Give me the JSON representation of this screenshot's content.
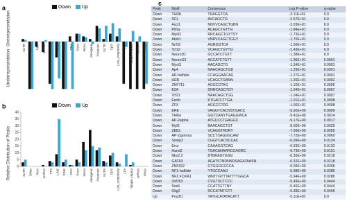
{
  "chart_data": [
    {
      "type": "bar",
      "panel": "a",
      "ylabel_top": "Overrepresentation",
      "ylabel_bottom": "Underrepresentation",
      "categories": [
        "3UTR",
        "Other",
        "RNA",
        "ncRNA",
        "TTS",
        "LINE",
        "SINE",
        "DNA",
        "Exon",
        "Intron",
        "Intergenic",
        "Promoter",
        "5UTR",
        "CpG",
        "Low_complexity",
        "LTR",
        "Simple_repeat",
        "snRNA",
        "rRNA"
      ],
      "series": [
        {
          "name": "Down",
          "color": "#111111",
          "values": [
            0.5,
            -9,
            -1,
            -2,
            -8,
            -3,
            -9,
            1,
            1.5,
            1,
            0.5,
            3,
            0.5,
            1.5,
            1,
            -8,
            -9,
            -9,
            -9
          ]
        },
        {
          "name": "Up",
          "color": "#3aa6d8",
          "values": [
            0.3,
            -9,
            0,
            0.3,
            -9,
            -7,
            -9,
            -9,
            1.5,
            0.8,
            -0.5,
            2.5,
            3,
            3.5,
            2.5,
            -1,
            2,
            1,
            -8
          ]
        }
      ],
      "ylim": [
        -10,
        5
      ],
      "legend": "top"
    },
    {
      "type": "bar",
      "panel": "b",
      "ylabel": "Relative Distribution of Peaks",
      "categories": [
        "3UTR",
        "Other",
        "RNA",
        "ncRNA",
        "TTS",
        "LINE",
        "SINE",
        "DNA",
        "Exon",
        "Intron",
        "Intergenic",
        "Promoter",
        "5UTR",
        "CpG",
        "Low_complexity",
        "LTR",
        "Simple_repeat",
        "snRNA",
        "rRNA"
      ],
      "series": [
        {
          "name": "Down",
          "color": "#111111",
          "values": [
            3,
            0,
            0,
            1,
            4,
            9,
            3,
            1,
            5,
            18,
            27,
            12,
            4,
            8,
            3,
            0,
            1,
            0,
            0
          ]
        },
        {
          "name": "Up",
          "color": "#3aa6d8",
          "values": [
            5,
            0,
            0,
            0,
            3,
            35,
            5,
            1,
            3,
            12,
            15,
            14,
            3,
            10,
            2,
            9,
            3,
            0,
            0
          ]
        }
      ],
      "ylim": [
        0,
        40
      ],
      "yticks": [
        0,
        5,
        10,
        15,
        20,
        25,
        30,
        35,
        40
      ],
      "legend": "top"
    }
  ],
  "table": {
    "panel": "c",
    "columns": [
      "Peak",
      "Motif",
      "Consensus",
      "Log P-value",
      "q-value"
    ],
    "rows": [
      [
        "Down",
        "THRb",
        "TRAGGTCA",
        "-3.11E+01",
        "0.0"
      ],
      [
        "Down",
        "SCL",
        "AVCAGCTG",
        "-2.57E+01",
        "0.0"
      ],
      [
        "Down",
        "Ascl1",
        "NNVVCAGCTGBN",
        "-2.03E+01",
        "0.0"
      ],
      [
        "Down",
        "Ptf1a",
        "ACAGCTGTTN",
        "-1.84E+01",
        "0.0"
      ],
      [
        "Down",
        "MyoD",
        "RRCAGCTGYTSY",
        "-1.73E+01",
        "0.0"
      ],
      [
        "Down",
        "Atoh1",
        "VNRVCAGCTGGY",
        "-1.70E+01",
        "0.0"
      ],
      [
        "Down",
        "Nr2f2",
        "AGRGGTCA",
        "-1.56E+01",
        "0.0"
      ],
      [
        "Down",
        "Tcf12",
        "VCAGCTGYTG",
        "-1.43E+01",
        "0.0"
      ],
      [
        "Down",
        "NeuroD1",
        "GCCATCTGTT",
        "-1.38E+01",
        "0.0"
      ],
      [
        "Down",
        "NeuroG2",
        "ACCATCTGTT",
        "-1.36E+01",
        "0.0001"
      ],
      [
        "Down",
        "MyoG",
        "AACAGCTG",
        "-1.34E+01",
        "0.0001"
      ],
      [
        "Down",
        "Ap4",
        "NAHCAGCTGD",
        "-1.29E+01",
        "0.0001"
      ],
      [
        "Down",
        "AR-halfsite",
        "CCAGGAACAG",
        "-1.27E+01",
        "0.0001"
      ],
      [
        "Down",
        "HEB",
        "VCAGCTGBNN",
        "-1.20E+01",
        "0.0002"
      ],
      [
        "Down",
        "ZNF711",
        "AGGCCTAG",
        "-1.10E+01",
        "0.0005"
      ],
      [
        "Down",
        "E2A",
        "DNRCAGCTGY",
        "-1.04E+01",
        "0.0007"
      ],
      [
        "Down",
        "Tcf21",
        "NAACAGCTGG",
        "-1.04E+01",
        "0.0007"
      ],
      [
        "Down",
        "Esrrb",
        "KTGACCTTGA",
        "-1.01E+01",
        "0.0008"
      ],
      [
        "Down",
        "ZFX",
        "AGGCCTRG",
        "-1.00E+01",
        "0.0008"
      ],
      [
        "Down",
        "ERE",
        "VAGGTCACNSTGACC",
        "-9.92E+00",
        "0.0009"
      ],
      [
        "Down",
        "THRa",
        "GGTCANYTGAGGWCA",
        "-9.41E+00",
        "0.0014"
      ],
      [
        "Down",
        "AP-2alpha",
        "ATGCCCTGAGGC",
        "-9.17E+00",
        "0.0017"
      ],
      [
        "Down",
        "Myf5",
        "BAACAGCTGT",
        "-8.60E+00",
        "0.0029"
      ],
      [
        "Down",
        "ZEB1",
        "VCAGGTRDRY",
        "-7.96E+00",
        "0.0055"
      ],
      [
        "Down",
        "AP-2gamma",
        "SCCTSAGGSCAW",
        "-7.72E+00",
        "0.0069"
      ],
      [
        "Down",
        "Srebp2",
        "CGGTCACSCCAC",
        "-6.99E+00",
        "0.0134"
      ],
      [
        "Down",
        "Erra",
        "CAAAGGTCAG",
        "-6.93E+00",
        "0.0132"
      ],
      [
        "Down",
        "Hand2",
        "TGACANARRCCAGRC",
        "-6.73E+00",
        "0.0151"
      ],
      [
        "Down",
        "Nkx2.2",
        "BTBRAGTGSN",
        "-6.36E+00",
        "0.0218"
      ],
      [
        "Down",
        "GATA3",
        "AGATSTNDNNDSAGATAASN",
        "-6.32E+00",
        "0.0218"
      ],
      [
        "Down",
        "ZNF692",
        "GTGGGCCCCA",
        "-6.09E+00",
        "0.0266"
      ],
      [
        "Down",
        "NF1-halfsite",
        "YTGCCAAG",
        "-5.98E+00",
        "0.0286"
      ],
      [
        "Down",
        "NF1:FOXA1",
        "WNTTGTTTATTTTGGCA",
        "-5.94E+00",
        "0.0286"
      ],
      [
        "Down",
        "Znf263",
        "CVGTSCTCCC",
        "-5.49E+00",
        "0.0444"
      ],
      [
        "Down",
        "Sox6",
        "CCATTGTTNY",
        "-5.46E+00",
        "0.0444"
      ],
      [
        "Down",
        "Olig2",
        "RCCATMTGTT",
        "-5.38E+00",
        "0.0466"
      ],
      [
        "Up",
        "Pou3f1",
        "YATGCATATACATT",
        "-5.11E+00",
        "0.0"
      ]
    ]
  }
}
